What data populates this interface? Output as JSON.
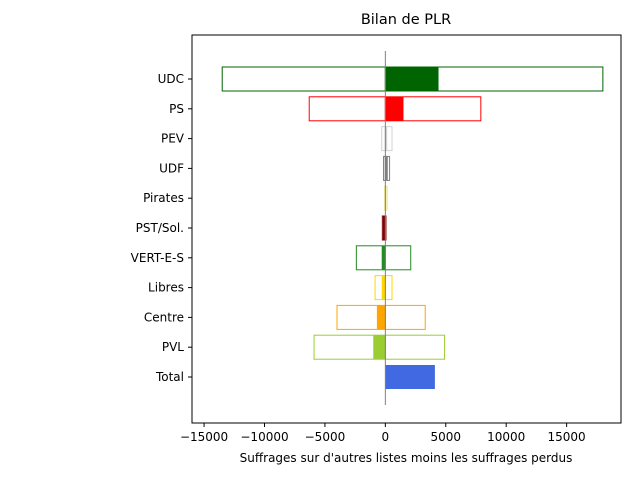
{
  "chart_data": {
    "type": "bar",
    "orientation": "horizontal",
    "title": "Bilan de PLR",
    "xlabel": "Suffrages sur d'autres listes moins les suffrages perdus",
    "ylabel": "",
    "xlim": [
      -16000,
      19500
    ],
    "xticks": [
      -15000,
      -10000,
      -5000,
      0,
      5000,
      10000,
      15000
    ],
    "categories": [
      "UDC",
      "PS",
      "PEV",
      "UDF",
      "Pirates",
      "PST/Sol.",
      "VERT-E-S",
      "Libres",
      "Centre",
      "PVL",
      "Total"
    ],
    "series": [
      {
        "role": "outline-range",
        "lost": [
          -13500,
          -6300,
          -300,
          -150,
          -60,
          -250,
          -2400,
          -850,
          -4000,
          -5900,
          0
        ],
        "gained": [
          18000,
          7900,
          550,
          350,
          150,
          50,
          2100,
          550,
          3300,
          4900,
          0
        ]
      },
      {
        "role": "net-fill",
        "values": [
          4400,
          1500,
          150,
          200,
          80,
          -200,
          -300,
          -300,
          -700,
          -1000,
          4100
        ]
      }
    ],
    "colors": {
      "UDC": "#006400",
      "PS": "#ff0000",
      "PEV": "#d3d3d3",
      "UDF": "#808080",
      "Pirates": "#f0e68c",
      "PST/Sol.": "#800000",
      "VERT-E-S": "#228b22",
      "Libres": "#ffd700",
      "Centre": "#ffa500",
      "PVL": "#9acd32",
      "Total": "#4169e1"
    },
    "grid": false,
    "legend": "none"
  }
}
